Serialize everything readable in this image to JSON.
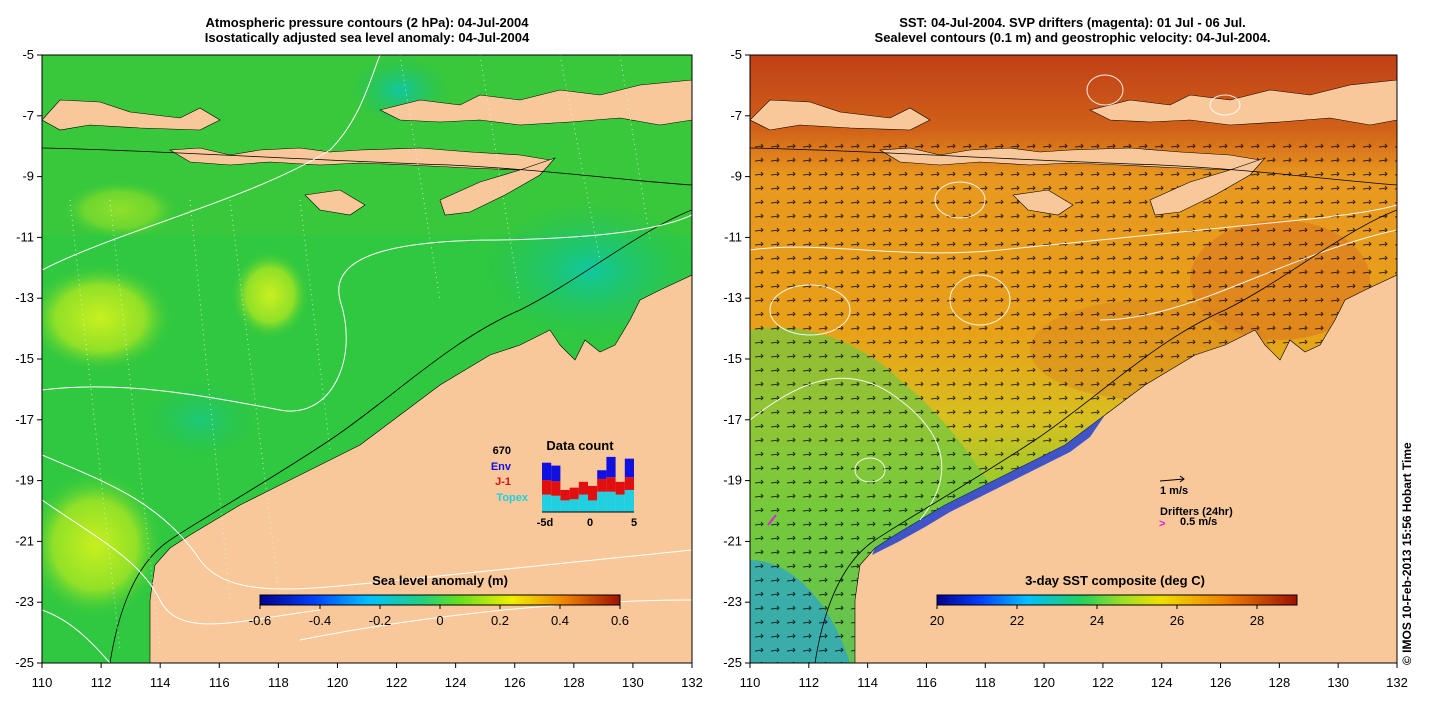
{
  "left_panel": {
    "title_line1": "Atmospheric pressure contours (2 hPa): 04-Jul-2004",
    "title_line2": "Isostatically adjusted sea level anomaly: 04-Jul-2004",
    "lat_ticks": [
      "-5",
      "-7",
      "-9",
      "-11",
      "-13",
      "-15",
      "-17",
      "-19",
      "-21",
      "-23",
      "-25"
    ],
    "lon_ticks": [
      "110",
      "112",
      "114",
      "116",
      "118",
      "120",
      "122",
      "124",
      "126",
      "128",
      "130",
      "132"
    ],
    "colorbar": {
      "title": "Sea level anomaly (m)",
      "ticks": [
        "-0.6",
        "-0.4",
        "-0.2",
        "0",
        "0.2",
        "0.4",
        "0.6"
      ],
      "range": [
        -0.6,
        0.6
      ]
    },
    "data_count": {
      "title": "Data count",
      "total": "670",
      "legend": [
        {
          "label": "Env",
          "color": "#1010e0"
        },
        {
          "label": "J-1",
          "color": "#e01010"
        },
        {
          "label": "Topex",
          "color": "#20d0e0"
        }
      ],
      "x_labels": [
        "-5d",
        "0",
        "5"
      ],
      "bars": [
        {
          "topex": 0.3,
          "j1": 0.25,
          "env": 0.3
        },
        {
          "topex": 0.28,
          "j1": 0.25,
          "env": 0.27
        },
        {
          "topex": 0.2,
          "j1": 0.18,
          "env": 0.0
        },
        {
          "topex": 0.22,
          "j1": 0.2,
          "env": 0.0
        },
        {
          "topex": 0.3,
          "j1": 0.22,
          "env": 0.0
        },
        {
          "topex": 0.2,
          "j1": 0.25,
          "env": 0.0
        },
        {
          "topex": 0.35,
          "j1": 0.22,
          "env": 0.15
        },
        {
          "topex": 0.35,
          "j1": 0.25,
          "env": 0.35
        },
        {
          "topex": 0.3,
          "j1": 0.22,
          "env": 0.0
        },
        {
          "topex": 0.38,
          "j1": 0.22,
          "env": 0.32
        }
      ]
    }
  },
  "right_panel": {
    "title_line1": "SST: 04-Jul-2004. SVP drifters (magenta): 01 Jul - 06 Jul.",
    "title_line2": "Sealevel contours (0.1 m) and geostrophic velocity: 04-Jul-2004.",
    "lat_ticks": [
      "-5",
      "-7",
      "-9",
      "-11",
      "-13",
      "-15",
      "-17",
      "-19",
      "-21",
      "-23",
      "-25"
    ],
    "lon_ticks": [
      "110",
      "112",
      "114",
      "116",
      "118",
      "120",
      "122",
      "124",
      "126",
      "128",
      "130",
      "132"
    ],
    "colorbar": {
      "title": "3-day SST composite (deg C)",
      "ticks": [
        "20",
        "22",
        "24",
        "26",
        "28"
      ],
      "range": [
        20,
        29
      ]
    },
    "velocity_legend": "1 m/s",
    "drifter_legend_line1": "Drifters (24hr)",
    "drifter_legend_line2": "0.5 m/s",
    "drifter_color": "#e020e0"
  },
  "copyright": "© IMOS 10-Feb-2013 15:56 Hobart Time",
  "colors": {
    "land": "#f8c89a",
    "ocean_green": "#28c840",
    "sst_red": "#b83018",
    "sst_orange": "#e8a020"
  }
}
